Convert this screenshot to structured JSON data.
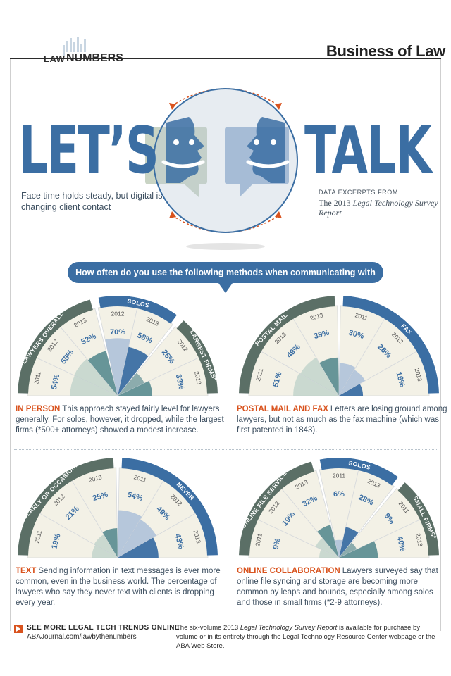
{
  "header": {
    "logo_law": "LAW",
    "logo_by_the": "BY THE",
    "logo_numbers": "NUMBERS",
    "section": "Business of Law"
  },
  "hero": {
    "title_left": "LET’S",
    "title_right": "TALK",
    "subtitle": "Face time holds steady, but digital is changing client contact",
    "excerpt_label": "DATA EXCERPTS FROM",
    "excerpt_prefix": "The 2013",
    "excerpt_title": "Legal Technology Survey Report"
  },
  "question": "How often do you use the following methods when communicating with clients?",
  "colors": {
    "brand_blue": "#3b6ea3",
    "accent_orange": "#d9531e",
    "teal": "#5f8f94",
    "light_blue": "#9bb5d6",
    "sage": "#b8cfc6",
    "cream": "#f3f1e6"
  },
  "chart_data": [
    {
      "type": "fan",
      "id": "in_person",
      "groups": [
        {
          "name": "LAWYERS OVERALL",
          "years": [
            "2011",
            "2012",
            "2013"
          ],
          "values": [
            54,
            55,
            52
          ]
        },
        {
          "name": "SOLOS",
          "years": [
            "2012",
            "2013"
          ],
          "values": [
            70,
            58
          ]
        },
        {
          "name": "LARGEST FIRMS*",
          "years": [
            "2012",
            "2013"
          ],
          "values": [
            25,
            33
          ]
        }
      ]
    },
    {
      "type": "fan",
      "id": "postal_fax",
      "groups": [
        {
          "name": "POSTAL MAIL",
          "years": [
            "2011",
            "2012",
            "2013"
          ],
          "values": [
            51,
            49,
            39
          ]
        },
        {
          "name": "FAX",
          "years": [
            "2011",
            "2012",
            "2013"
          ],
          "values": [
            30,
            26,
            16
          ]
        }
      ]
    },
    {
      "type": "fan",
      "id": "text",
      "groups": [
        {
          "name": "REGULARLY OR OCCASIONALLY",
          "years": [
            "2011",
            "2012",
            "2013"
          ],
          "values": [
            19,
            21,
            25
          ]
        },
        {
          "name": "NEVER",
          "years": [
            "2011",
            "2012",
            "2013"
          ],
          "values": [
            54,
            49,
            43
          ]
        }
      ]
    },
    {
      "type": "fan",
      "id": "online_collab",
      "groups": [
        {
          "name": "ONLINE FILE SERVICE",
          "years": [
            "2011",
            "2012",
            "2013"
          ],
          "values": [
            9,
            19,
            32
          ]
        },
        {
          "name": "SOLOS",
          "years": [
            "2011",
            "2013"
          ],
          "values": [
            6,
            28
          ]
        },
        {
          "name": "SMALL FIRMS*",
          "years": [
            "2011",
            "2013"
          ],
          "values": [
            9,
            40
          ]
        }
      ]
    }
  ],
  "panels": {
    "in_person": {
      "heading": "IN PERSON",
      "text": "This approach stayed fairly level for lawyers generally. For solos, however, it dropped, while the largest firms (*500+ attorneys) showed a modest increase."
    },
    "postal_fax": {
      "heading": "POSTAL MAIL AND FAX",
      "text": "Letters are losing ground among lawyers, but not as much as the fax machine (which was first patented in 1843)."
    },
    "text": {
      "heading": "TEXT",
      "text": "Sending information in text messages is ever more common, even in the business world. The percentage of lawyers who say they never text with clients is dropping every year."
    },
    "online_collab": {
      "heading": "ONLINE COLLABORATION",
      "text": "Lawyers surveyed say that online file syncing and storage are becoming more common by leaps and bounds, especially among solos and those in small firms (*2-9 attorneys)."
    }
  },
  "footer": {
    "see_more": "SEE MORE LEGAL TECH TRENDS ONLINE",
    "url": "ABAJournal.com/lawbythenumbers",
    "note_prefix": "The six-volume 2013",
    "note_title": "Legal Technology Survey Report",
    "note_suffix": "is available for purchase by volume or in its entirety through the Legal Technology Resource Center webpage or the ABA Web Store."
  }
}
